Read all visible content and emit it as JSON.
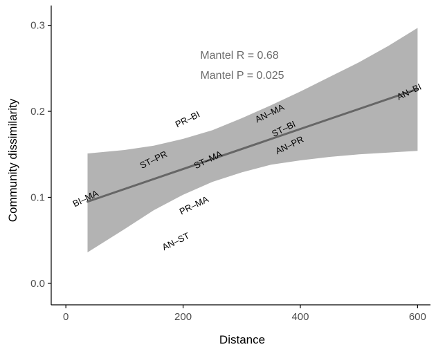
{
  "chart_data": {
    "type": "scatter",
    "xlabel": "Distance",
    "ylabel": "Community dissimilarity",
    "xlim": [
      -25,
      622
    ],
    "ylim": [
      -0.025,
      0.323
    ],
    "x_ticks": [
      0,
      200,
      400,
      600
    ],
    "y_ticks": [
      0.0,
      0.1,
      0.2,
      0.3
    ],
    "x_tick_labels": [
      "0",
      "200",
      "400",
      "600"
    ],
    "y_tick_labels": [
      "0.0",
      "0.1",
      "0.2",
      "0.3"
    ],
    "grid": false,
    "annotations": [
      "Mantel R = 0.68",
      "Mantel P = 0.025"
    ],
    "points": [
      {
        "label": "BI–MA",
        "x": 34,
        "y": 0.098
      },
      {
        "label": "ST–PR",
        "x": 150,
        "y": 0.143
      },
      {
        "label": "PR–BI",
        "x": 208,
        "y": 0.19
      },
      {
        "label": "ST–MA",
        "x": 243,
        "y": 0.143
      },
      {
        "label": "PR–MA",
        "x": 219,
        "y": 0.09
      },
      {
        "label": "AN–ST",
        "x": 188,
        "y": 0.048
      },
      {
        "label": "AN–MA",
        "x": 348,
        "y": 0.197
      },
      {
        "label": "ST–BI",
        "x": 372,
        "y": 0.179
      },
      {
        "label": "AN–PR",
        "x": 382,
        "y": 0.16
      },
      {
        "label": "AN–BI",
        "x": 586,
        "y": 0.222
      }
    ],
    "fit_line": {
      "x": [
        37,
        600
      ],
      "y": [
        0.095,
        0.226
      ],
      "color": "#666666"
    },
    "confidence_band": {
      "x": [
        37,
        100,
        150,
        200,
        250,
        300,
        350,
        400,
        450,
        500,
        550,
        600
      ],
      "upper": [
        0.151,
        0.155,
        0.16,
        0.168,
        0.178,
        0.192,
        0.207,
        0.223,
        0.24,
        0.257,
        0.276,
        0.297
      ],
      "lower": [
        0.036,
        0.063,
        0.085,
        0.103,
        0.118,
        0.129,
        0.138,
        0.143,
        0.147,
        0.15,
        0.152,
        0.154
      ],
      "color": "#b3b3b3"
    }
  }
}
